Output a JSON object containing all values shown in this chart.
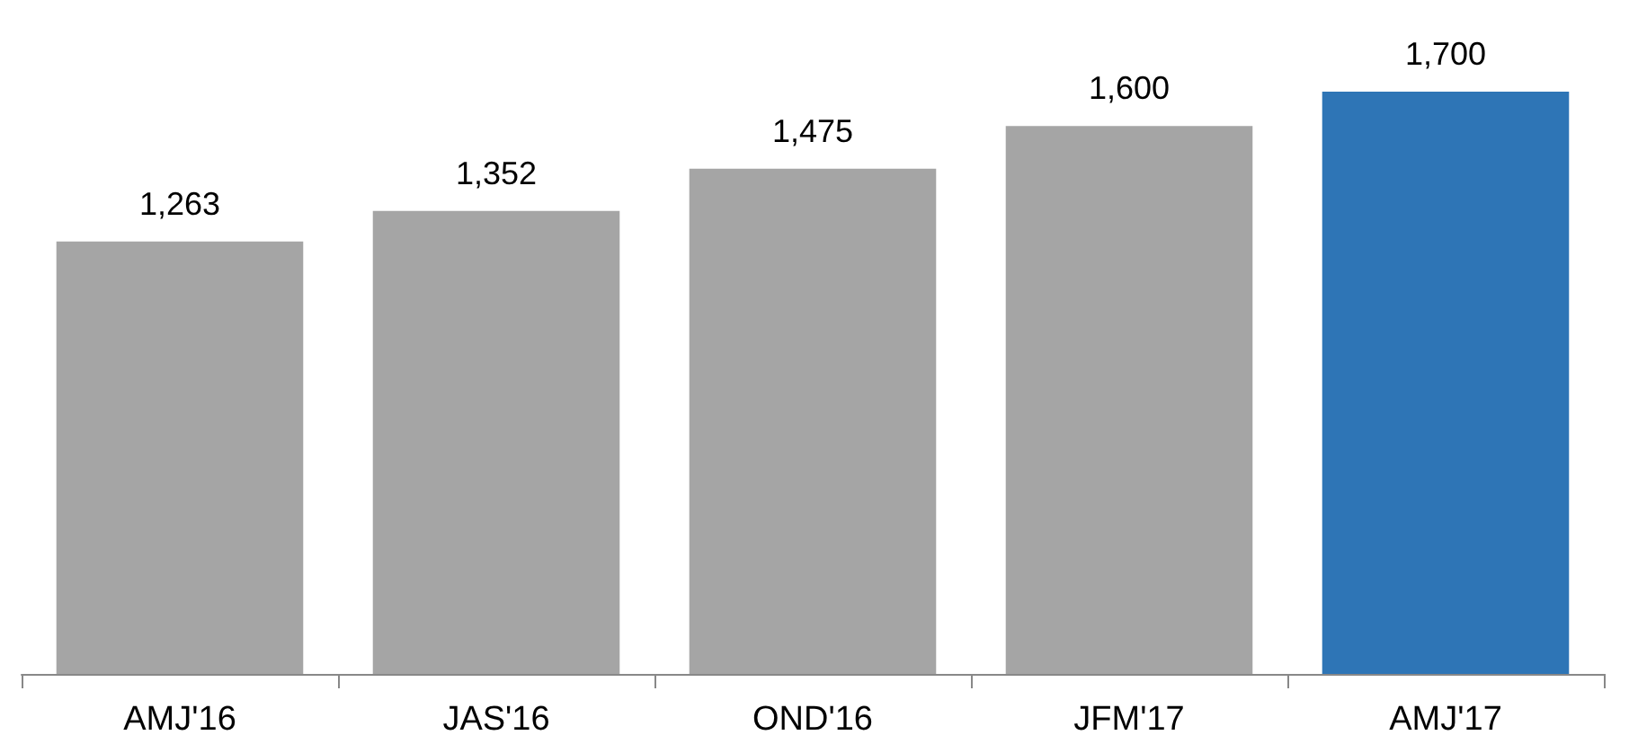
{
  "chart_data": {
    "type": "bar",
    "categories": [
      "AMJ'16",
      "JAS'16",
      "OND'16",
      "JFM'17",
      "AMJ'17"
    ],
    "values": [
      1263,
      1352,
      1475,
      1600,
      1700
    ],
    "value_labels": [
      "1,263",
      "1,352",
      "1,475",
      "1,600",
      "1,700"
    ],
    "colors": [
      "#a5a5a5",
      "#a5a5a5",
      "#a5a5a5",
      "#a5a5a5",
      "#2e75b6"
    ]
  }
}
